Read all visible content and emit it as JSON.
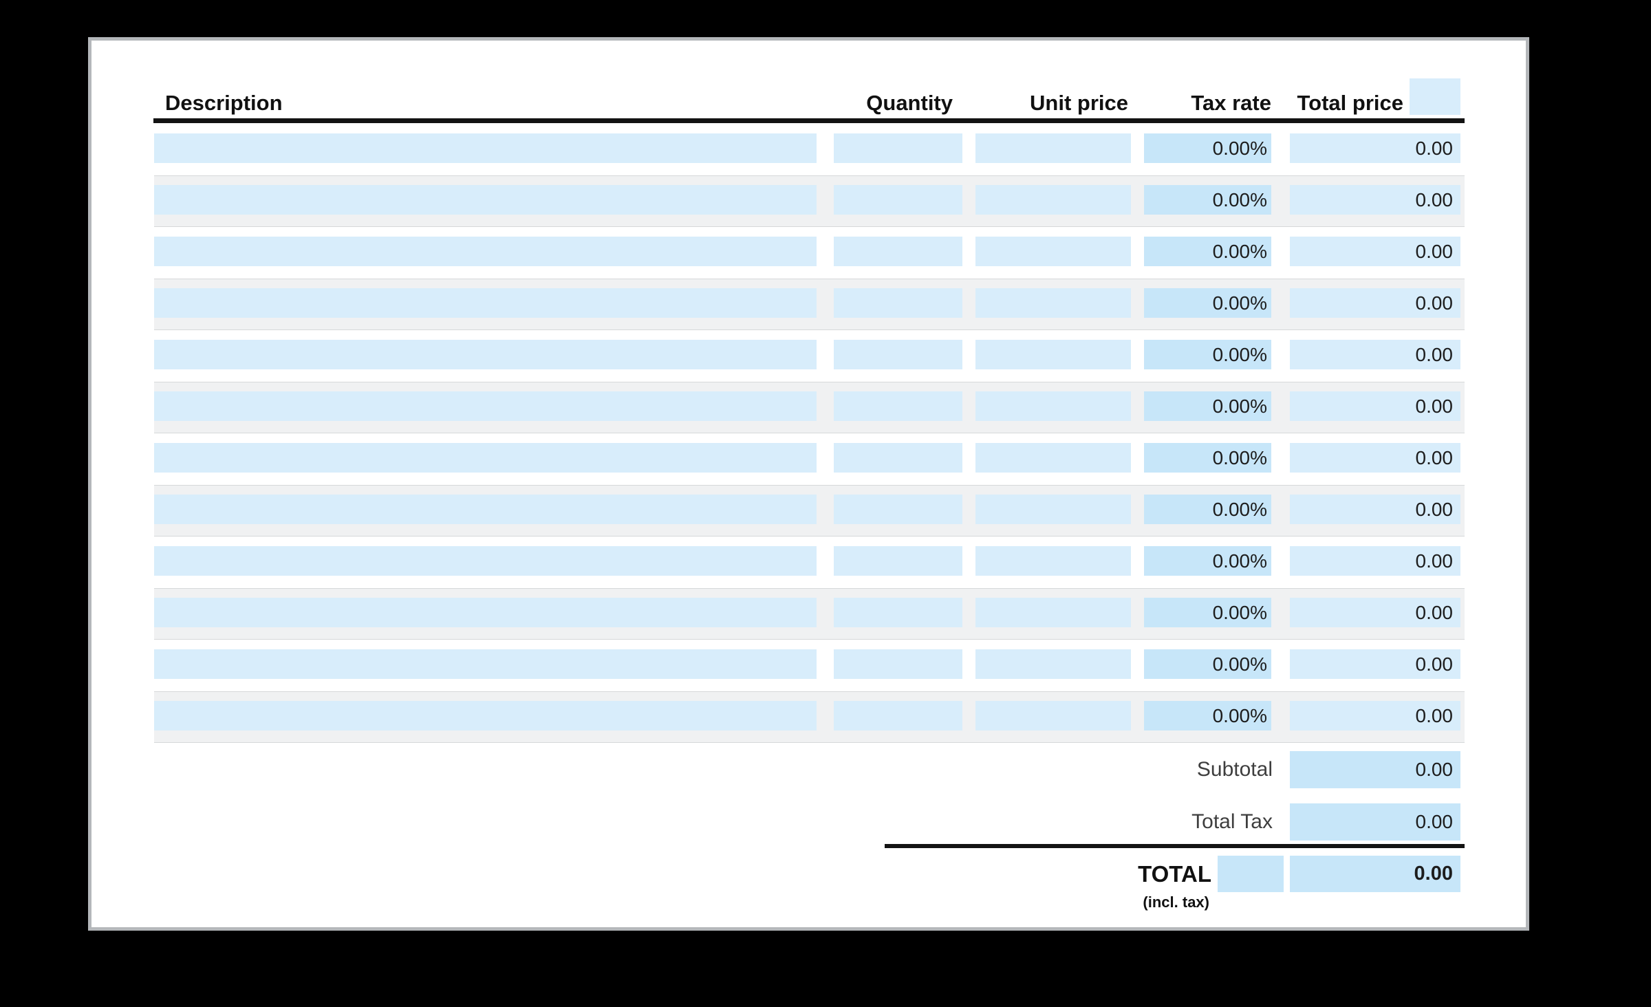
{
  "colors": {
    "background": "#000000",
    "paper": "#ffffff",
    "paper_border": "#b4b7ba",
    "field_blue": "#d8edfb",
    "field_blue_dark": "#c7e6f9",
    "row_stripe": "#f0f1f2",
    "stripe_line": "#d6d8d9",
    "rule": "#131313",
    "value_text": "#1d1d1d",
    "label_text": "#3e3e3e",
    "header_text": "#111111"
  },
  "table": {
    "columns": [
      {
        "label": "Description"
      },
      {
        "label": "Quantity"
      },
      {
        "label": "Unit price"
      },
      {
        "label": "Tax rate"
      },
      {
        "label": "Total price"
      }
    ]
  },
  "rows": [
    {
      "description": "",
      "quantity": "",
      "unit_price": "",
      "tax_rate": "0.00%",
      "total_price": "0.00"
    },
    {
      "description": "",
      "quantity": "",
      "unit_price": "",
      "tax_rate": "0.00%",
      "total_price": "0.00"
    },
    {
      "description": "",
      "quantity": "",
      "unit_price": "",
      "tax_rate": "0.00%",
      "total_price": "0.00"
    },
    {
      "description": "",
      "quantity": "",
      "unit_price": "",
      "tax_rate": "0.00%",
      "total_price": "0.00"
    },
    {
      "description": "",
      "quantity": "",
      "unit_price": "",
      "tax_rate": "0.00%",
      "total_price": "0.00"
    },
    {
      "description": "",
      "quantity": "",
      "unit_price": "",
      "tax_rate": "0.00%",
      "total_price": "0.00"
    },
    {
      "description": "",
      "quantity": "",
      "unit_price": "",
      "tax_rate": "0.00%",
      "total_price": "0.00"
    },
    {
      "description": "",
      "quantity": "",
      "unit_price": "",
      "tax_rate": "0.00%",
      "total_price": "0.00"
    },
    {
      "description": "",
      "quantity": "",
      "unit_price": "",
      "tax_rate": "0.00%",
      "total_price": "0.00"
    },
    {
      "description": "",
      "quantity": "",
      "unit_price": "",
      "tax_rate": "0.00%",
      "total_price": "0.00"
    },
    {
      "description": "",
      "quantity": "",
      "unit_price": "",
      "tax_rate": "0.00%",
      "total_price": "0.00"
    },
    {
      "description": "",
      "quantity": "",
      "unit_price": "",
      "tax_rate": "0.00%",
      "total_price": "0.00"
    }
  ],
  "summary": {
    "subtotal_label": "Subtotal",
    "subtotal_value": "0.00",
    "total_tax_label": "Total Tax",
    "total_tax_value": "0.00",
    "total_label": "TOTAL",
    "total_sublabel": "(incl. tax)",
    "total_value": "0.00"
  }
}
